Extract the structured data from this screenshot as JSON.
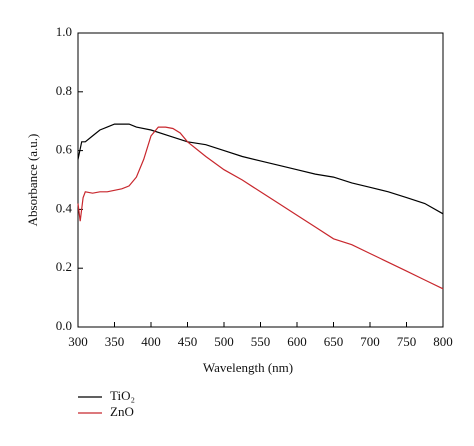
{
  "chart_data": {
    "type": "line",
    "xlabel": "Wavelength (nm)",
    "ylabel": "Absorbance (a.u.)",
    "xlim": [
      300,
      800
    ],
    "xticks": [
      300,
      350,
      400,
      450,
      500,
      550,
      600,
      650,
      700,
      750,
      800
    ],
    "ylim": [
      0,
      1
    ],
    "yticks": [
      {
        "value": 0,
        "label": "0.0"
      },
      {
        "value": 0.2,
        "label": "0.2"
      },
      {
        "value": 0.4,
        "label": "0.4"
      },
      {
        "value": 0.6,
        "label": "0.6"
      },
      {
        "value": 0.8,
        "label": "0.8"
      },
      {
        "value": 1,
        "label": "1.0"
      }
    ],
    "legend": "bottom-left",
    "series": [
      {
        "name": "TiO₂",
        "color": "#000000",
        "x": [
          300,
          305,
          310,
          320,
          330,
          340,
          350,
          360,
          370,
          380,
          400,
          425,
          450,
          475,
          500,
          525,
          550,
          575,
          600,
          625,
          650,
          675,
          700,
          725,
          750,
          775,
          800
        ],
        "values": [
          0.57,
          0.63,
          0.63,
          0.65,
          0.67,
          0.68,
          0.69,
          0.69,
          0.69,
          0.68,
          0.67,
          0.65,
          0.63,
          0.62,
          0.6,
          0.58,
          0.565,
          0.55,
          0.535,
          0.52,
          0.51,
          0.49,
          0.475,
          0.46,
          0.44,
          0.42,
          0.385
        ]
      },
      {
        "name": "ZnO",
        "color": "#c8272d",
        "x": [
          300,
          303,
          307,
          310,
          320,
          330,
          340,
          350,
          360,
          370,
          380,
          390,
          400,
          410,
          420,
          430,
          440,
          450,
          475,
          500,
          525,
          550,
          575,
          600,
          625,
          650,
          675,
          700,
          725,
          750,
          775,
          800
        ],
        "values": [
          0.42,
          0.36,
          0.44,
          0.46,
          0.455,
          0.46,
          0.46,
          0.465,
          0.47,
          0.48,
          0.51,
          0.57,
          0.65,
          0.68,
          0.68,
          0.675,
          0.66,
          0.63,
          0.58,
          0.535,
          0.5,
          0.46,
          0.42,
          0.38,
          0.34,
          0.3,
          0.28,
          0.25,
          0.22,
          0.19,
          0.16,
          0.13
        ]
      }
    ]
  }
}
